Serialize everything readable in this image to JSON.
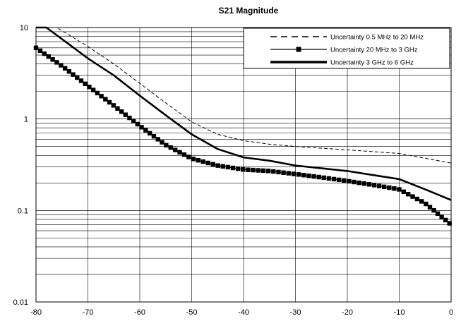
{
  "chart_data": {
    "type": "line",
    "title": "S21 Magnitude",
    "xlabel": "",
    "ylabel": "",
    "xlim": [
      -80,
      0
    ],
    "ylim": [
      0.01,
      10
    ],
    "y_scale": "log",
    "x_ticks": [
      -80,
      -70,
      -60,
      -50,
      -40,
      -30,
      -20,
      -10,
      0
    ],
    "y_ticks": [
      {
        "value": 10,
        "label": "10"
      },
      {
        "value": 1,
        "label": "1"
      },
      {
        "value": 0.1,
        "label": "0.1"
      },
      {
        "value": 0.01,
        "label": "0.01"
      }
    ],
    "grid": true,
    "legend_position": "top-right",
    "series": [
      {
        "name": "Uncertainty 0.5 MHz to 20 MHz",
        "style": "dashed",
        "x": [
          -80,
          -76,
          -70,
          -65,
          -60,
          -55,
          -50,
          -45,
          -40,
          -35,
          -30,
          -20,
          -10,
          0
        ],
        "y": [
          10,
          10,
          6.2,
          4.0,
          2.45,
          1.5,
          0.93,
          0.68,
          0.58,
          0.53,
          0.5,
          0.46,
          0.42,
          0.33
        ]
      },
      {
        "name": "Uncertainty 20 MHz to  3 GHz",
        "style": "square-markers",
        "x": [
          -80,
          -75,
          -70,
          -65,
          -60,
          -55,
          -50,
          -45,
          -40,
          -35,
          -30,
          -25,
          -20,
          -15,
          -10,
          -5,
          0
        ],
        "y": [
          6.0,
          3.8,
          2.3,
          1.4,
          0.84,
          0.52,
          0.37,
          0.31,
          0.28,
          0.27,
          0.25,
          0.23,
          0.21,
          0.19,
          0.17,
          0.12,
          0.07
        ]
      },
      {
        "name": "Uncertainty 3 GHz to 6 GHz",
        "style": "thick-solid",
        "x": [
          -80,
          -78,
          -70,
          -65,
          -60,
          -55,
          -50,
          -45,
          -40,
          -35,
          -30,
          -20,
          -10,
          -5,
          0
        ],
        "y": [
          10,
          10,
          4.6,
          3.0,
          1.8,
          1.1,
          0.68,
          0.47,
          0.38,
          0.35,
          0.31,
          0.27,
          0.22,
          0.17,
          0.13
        ]
      }
    ]
  }
}
